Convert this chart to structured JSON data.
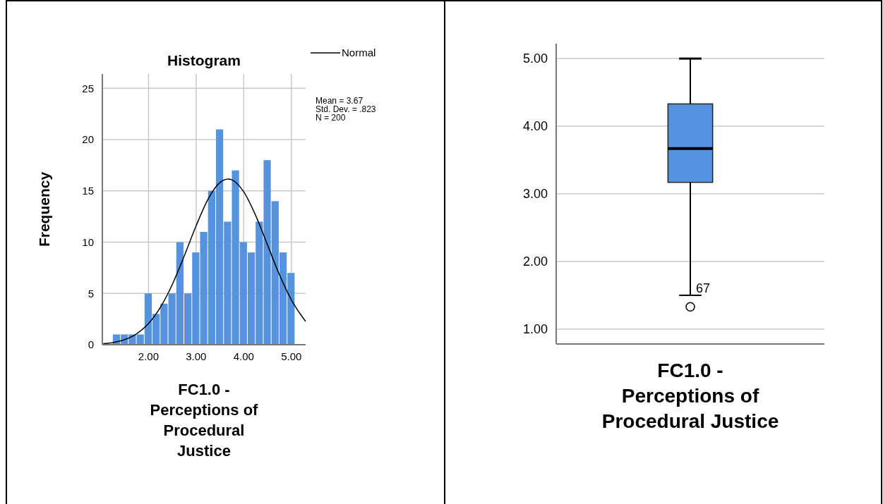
{
  "chart_data": [
    {
      "type": "histogram",
      "title": "Histogram",
      "xlabel": "FC1.0 - Perceptions of Procedural Justice",
      "ylabel": "Frequency",
      "color": "#5593df",
      "bins": [
        1.25,
        1.417,
        1.583,
        1.75,
        1.917,
        2.083,
        2.25,
        2.417,
        2.583,
        2.75,
        2.917,
        3.083,
        3.25,
        3.417,
        3.583,
        3.75,
        3.917,
        4.083,
        4.25,
        4.417,
        4.583,
        4.75,
        4.917,
        5.083
      ],
      "values": [
        1,
        1,
        1,
        1,
        5,
        3,
        4,
        5,
        10,
        5,
        9,
        11,
        15,
        21,
        12,
        17,
        10,
        9,
        12,
        18,
        14,
        9,
        7
      ],
      "series": [
        {
          "name": "Normal",
          "type": "line",
          "color": "#000000",
          "x": [
            1.05,
            1.25,
            1.5,
            1.75,
            2,
            2.25,
            2.5,
            2.75,
            3,
            3.25,
            3.5,
            3.67,
            3.75,
            4,
            4.25,
            4.5,
            4.75,
            5,
            5.3
          ],
          "values": [
            0.1,
            0.21,
            0.5,
            1.06,
            2.06,
            3.65,
            5.88,
            8.65,
            11.6,
            14.19,
            15.82,
            16.16,
            16.08,
            14.91,
            12.61,
            9.72,
            6.83,
            4.38,
            2.27
          ]
        }
      ],
      "xlim": [
        1.03,
        5.3
      ],
      "ylim": [
        0,
        26.4
      ],
      "xticks": [
        {
          "value": 2,
          "label": "2.00"
        },
        {
          "value": 3,
          "label": "3.00"
        },
        {
          "value": 4,
          "label": "4.00"
        },
        {
          "value": 5,
          "label": "5.00"
        }
      ],
      "yticks": [
        0,
        5,
        10,
        15,
        20,
        25
      ],
      "grid": true,
      "legend": "top right",
      "annotations": [
        "Mean = 3.67",
        "Std. Dev. = .823",
        "N = 200"
      ]
    },
    {
      "type": "box",
      "xlabel": "FC1.0 - Perceptions of Procedural Justice",
      "color": "#5593df",
      "categories": [
        null
      ],
      "boxes": [
        {
          "low": 1.5,
          "q1": 3.17,
          "median": 3.67,
          "q3": 4.33,
          "high": 5,
          "outliers": [
            1.33
          ]
        }
      ],
      "ylim": [
        0.78,
        5.22
      ],
      "yticks": [
        {
          "value": 1,
          "label": "1.00"
        },
        {
          "value": 2,
          "label": "2.00"
        },
        {
          "value": 3,
          "label": "3.00"
        },
        {
          "value": 4,
          "label": "4.00"
        },
        {
          "value": 5,
          "label": "5.00"
        }
      ],
      "grid": "y",
      "annotations": [
        "67"
      ]
    }
  ]
}
